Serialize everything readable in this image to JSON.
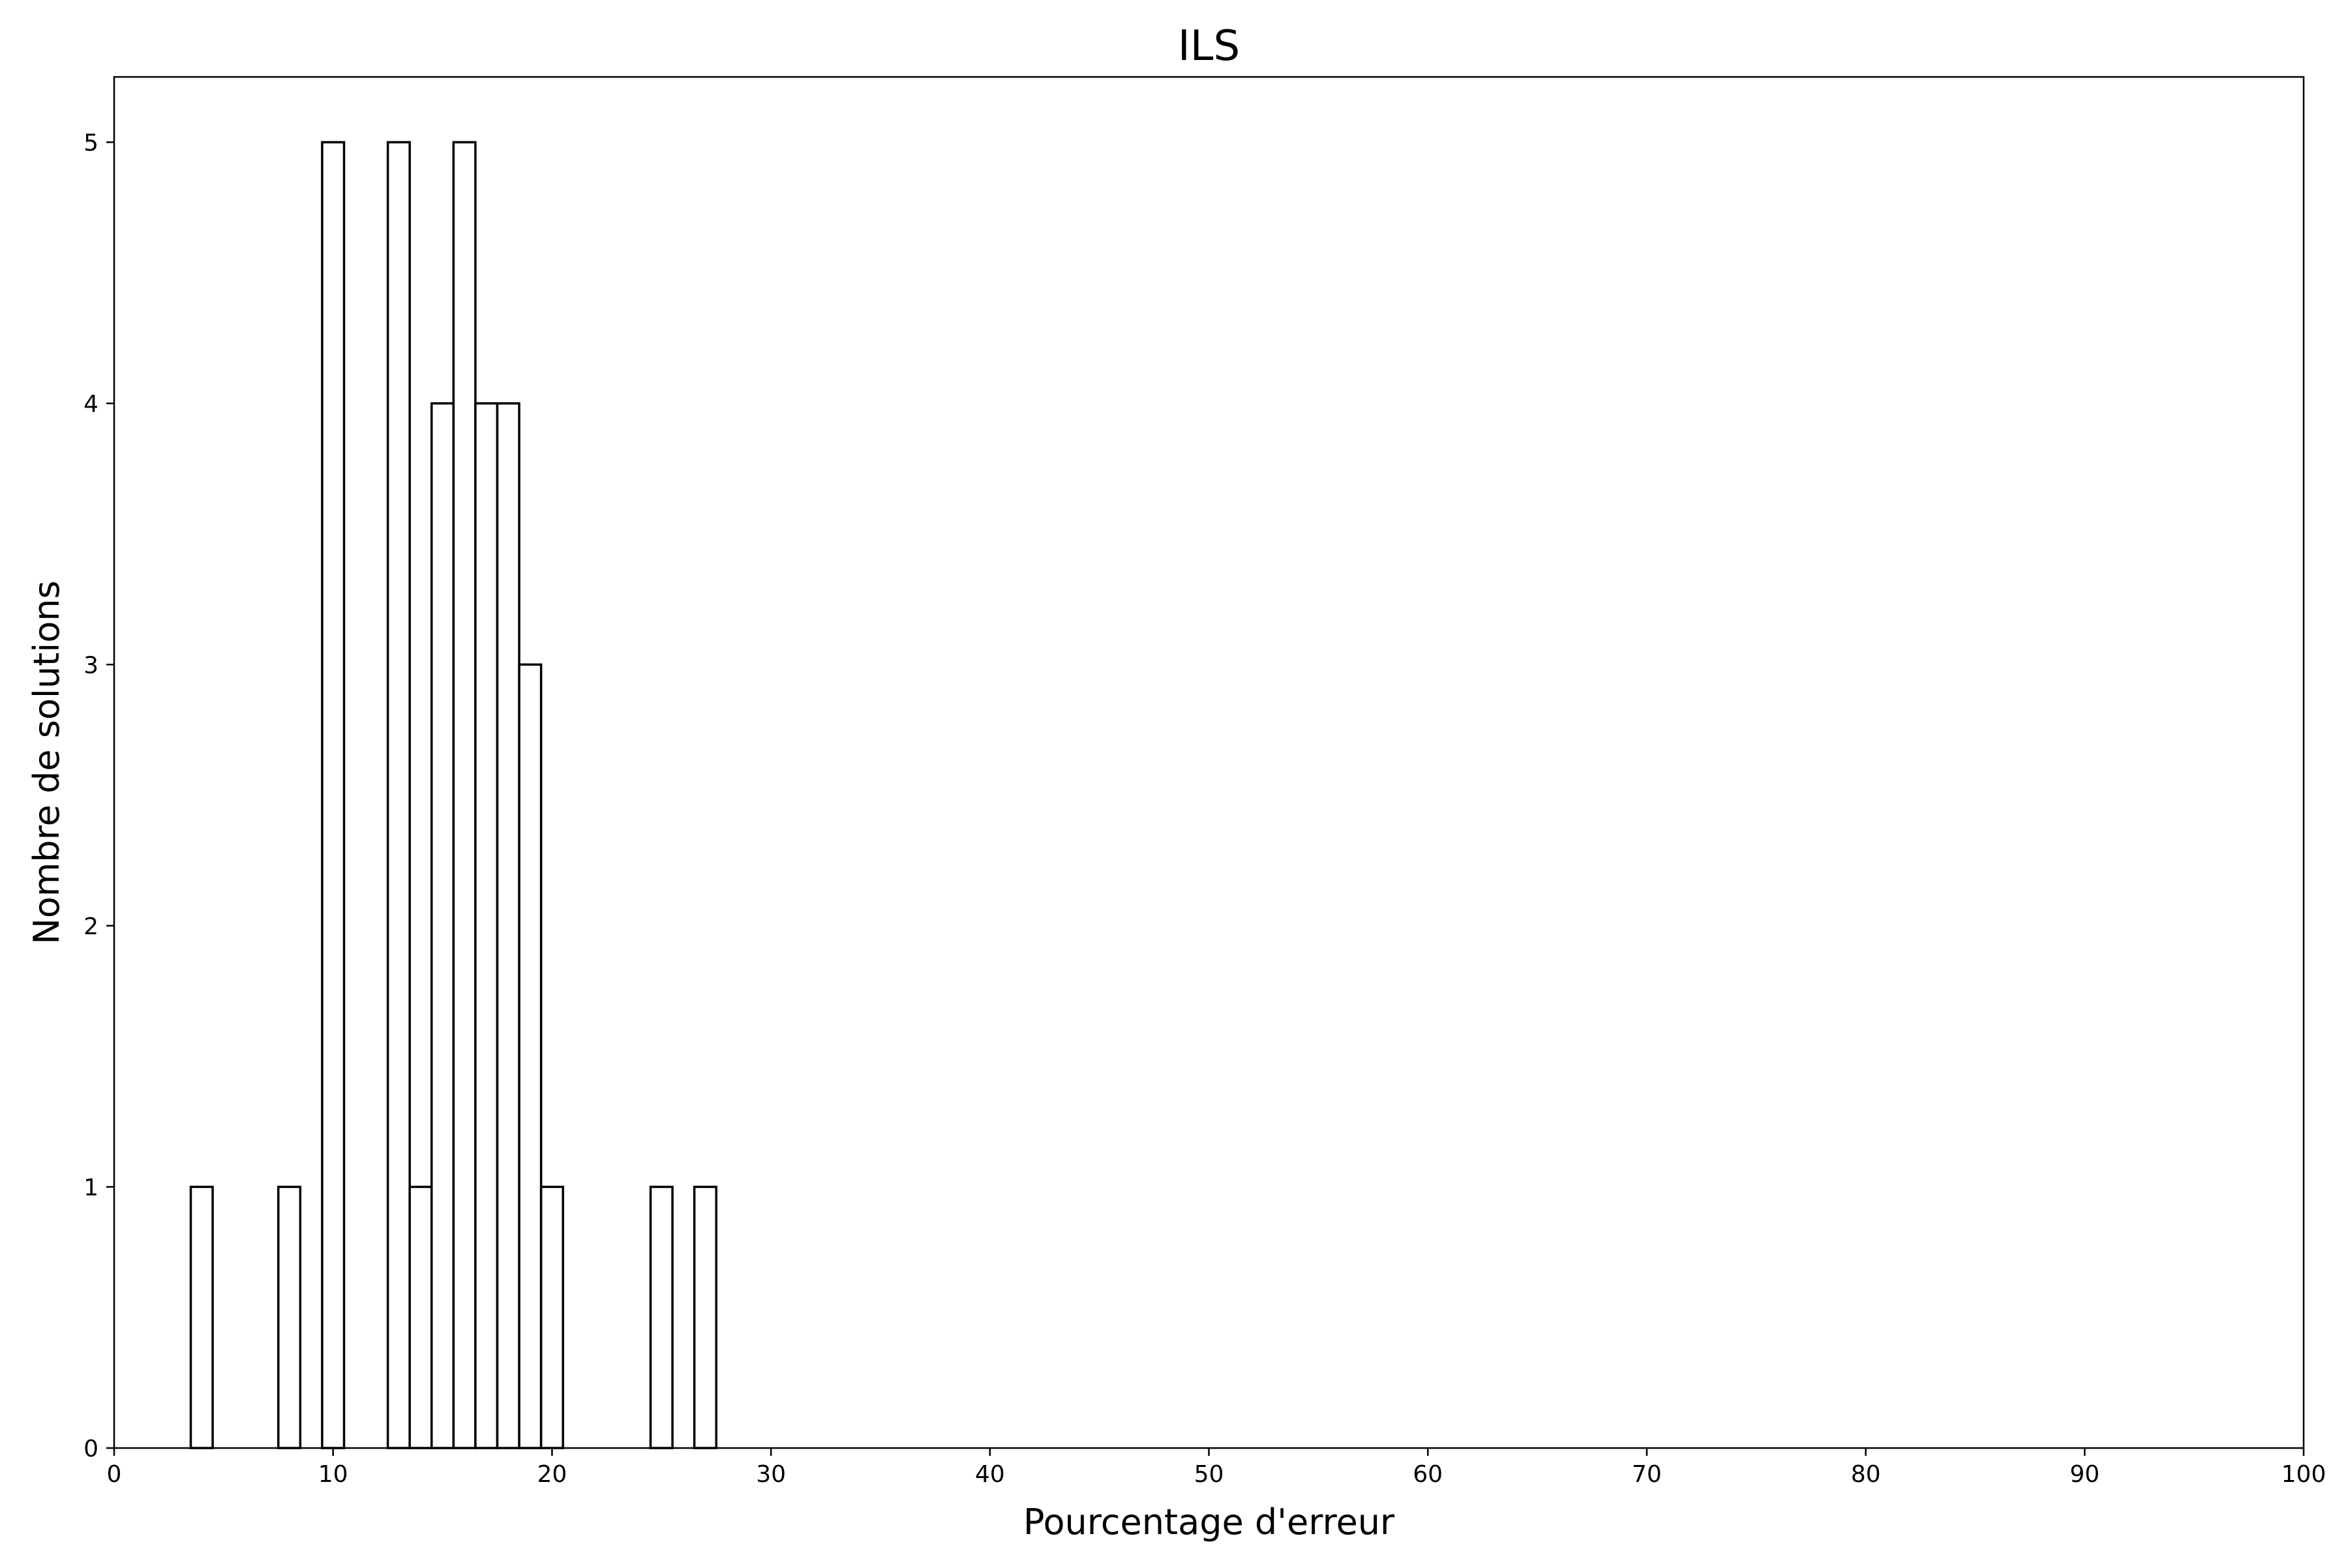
{
  "chart_data": {
    "type": "bar",
    "title": "ILS",
    "xlabel": "Pourcentage d'erreur",
    "ylabel": "Nombre de solutions",
    "xlim": [
      0,
      100
    ],
    "ylim": [
      0,
      5.25
    ],
    "xticks": [
      0,
      10,
      20,
      30,
      40,
      50,
      60,
      70,
      80,
      90,
      100
    ],
    "yticks": [
      0,
      1,
      2,
      3,
      4,
      5
    ],
    "grid": false,
    "bar_style": {
      "fill": "#ffffff",
      "edge": "#000000"
    },
    "bins": [
      {
        "x0": 3.5,
        "x1": 4.5,
        "count": 1
      },
      {
        "x0": 7.5,
        "x1": 8.5,
        "count": 1
      },
      {
        "x0": 9.5,
        "x1": 10.5,
        "count": 5
      },
      {
        "x0": 12.5,
        "x1": 13.5,
        "count": 5
      },
      {
        "x0": 13.5,
        "x1": 14.5,
        "count": 1
      },
      {
        "x0": 14.5,
        "x1": 15.5,
        "count": 4
      },
      {
        "x0": 15.5,
        "x1": 16.5,
        "count": 5
      },
      {
        "x0": 16.5,
        "x1": 17.5,
        "count": 4
      },
      {
        "x0": 17.5,
        "x1": 18.5,
        "count": 4
      },
      {
        "x0": 18.5,
        "x1": 19.5,
        "count": 3
      },
      {
        "x0": 19.5,
        "x1": 20.5,
        "count": 1
      },
      {
        "x0": 24.5,
        "x1": 25.5,
        "count": 1
      },
      {
        "x0": 26.5,
        "x1": 27.5,
        "count": 1
      }
    ]
  }
}
